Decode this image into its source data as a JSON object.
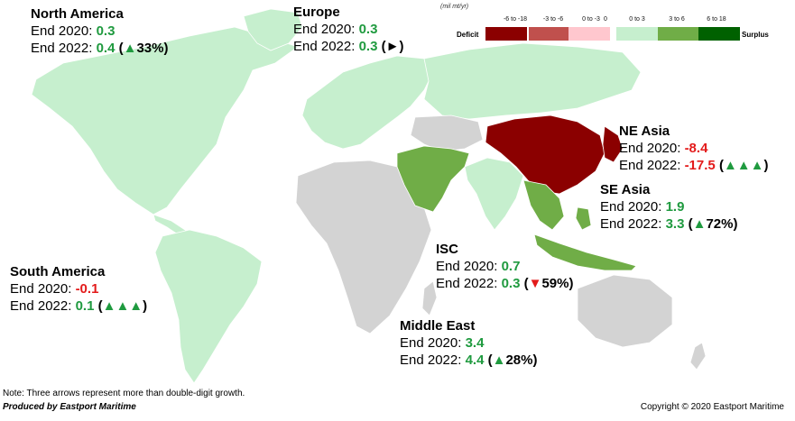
{
  "legend": {
    "unit": "(mil mt/yr)",
    "deficit_label": "Deficit",
    "surplus_label": "Surplus",
    "zero_label": "0",
    "bins": [
      {
        "label": "-6 to -18",
        "color": "#8b0000"
      },
      {
        "label": "-3 to -6",
        "color": "#c0504d"
      },
      {
        "label": "0 to -3",
        "color": "#ffc7ce"
      },
      {
        "label": "0 to 3",
        "color": "#c6efce"
      },
      {
        "label": "3 to 6",
        "color": "#70ad47"
      },
      {
        "label": "6 to 18",
        "color": "#006100"
      }
    ]
  },
  "regions": {
    "north_america": {
      "name": "North America",
      "l1": "End 2020: ",
      "v1": "0.3",
      "l2": "End 2022: ",
      "v2": "0.4",
      "arrow": "▲",
      "change": "33%",
      "fill": "#c6efce"
    },
    "europe": {
      "name": "Europe",
      "l1": "End 2020: ",
      "v1": "0.3",
      "l2": "End 2022: ",
      "v2": "0.3",
      "arrow": "►",
      "change": "",
      "fill": "#c6efce"
    },
    "ne_asia": {
      "name": "NE Asia",
      "l1": "End 2020: ",
      "v1": "-8.4",
      "l2": "End 2022: ",
      "v2": "-17.5",
      "arrow": "▲▲▲",
      "change": "",
      "fill": "#8b0000"
    },
    "se_asia": {
      "name": "SE Asia",
      "l1": "End 2020: ",
      "v1": "1.9",
      "l2": "End 2022: ",
      "v2": "3.3",
      "arrow": "▲",
      "change": "72%",
      "fill": "#70ad47"
    },
    "south_america": {
      "name": "South America",
      "l1": "End 2020: ",
      "v1": "-0.1",
      "l2": "End 2022: ",
      "v2": "0.1",
      "arrow": "▲▲▲",
      "change": "",
      "fill": "#c6efce"
    },
    "isc": {
      "name": "ISC",
      "l1": "End 2020: ",
      "v1": "0.7",
      "l2": "End 2022: ",
      "v2": "0.3",
      "arrow": "▼",
      "change": "59%",
      "fill": "#c6efce"
    },
    "middle_east": {
      "name": "Middle East",
      "l1": "End 2020: ",
      "v1": "3.4",
      "l2": "End 2022: ",
      "v2": "4.4",
      "arrow": "▲",
      "change": "28%",
      "fill": "#70ad47"
    }
  },
  "other_fill": "#d3d3d3",
  "note": "Note: Three arrows represent more than double-digit growth.",
  "produced_by": "Produced by Eastport Maritime",
  "copyright": "Copyright © 2020 Eastport Maritime"
}
